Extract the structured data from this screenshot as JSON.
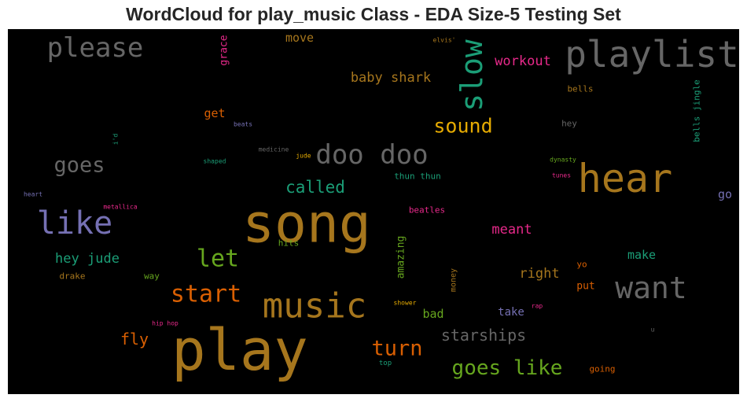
{
  "chart_data": {
    "type": "wordcloud",
    "title": "WordCloud for play_music Class - EDA Size-5 Testing Set",
    "background": "#000000",
    "palette": [
      "#1b9e77",
      "#d95f02",
      "#7570b3",
      "#e7298a",
      "#66a61e",
      "#e6ab02",
      "#a6761d",
      "#666666"
    ],
    "words": [
      {
        "text": "song",
        "color": "#a6761d"
      },
      {
        "text": "play",
        "color": "#a6761d"
      },
      {
        "text": "hear",
        "color": "#a6761d"
      },
      {
        "text": "playlist",
        "color": "#666666"
      },
      {
        "text": "music",
        "color": "#a6761d"
      },
      {
        "text": "like",
        "color": "#7570b3"
      },
      {
        "text": "want",
        "color": "#666666"
      },
      {
        "text": "doo doo",
        "color": "#666666"
      },
      {
        "text": "slow",
        "color": "#1b9e77"
      },
      {
        "text": "please",
        "color": "#666666"
      },
      {
        "text": "start",
        "color": "#d95f02"
      },
      {
        "text": "let",
        "color": "#66a61e"
      },
      {
        "text": "goes like",
        "color": "#66a61e"
      },
      {
        "text": "turn",
        "color": "#d95f02"
      },
      {
        "text": "goes",
        "color": "#666666"
      },
      {
        "text": "sound",
        "color": "#e6ab02"
      },
      {
        "text": "starships",
        "color": "#666666"
      },
      {
        "text": "called",
        "color": "#1b9e77"
      },
      {
        "text": "baby shark",
        "color": "#a6761d"
      },
      {
        "text": "hey jude",
        "color": "#1b9e77"
      },
      {
        "text": "workout",
        "color": "#e7298a"
      },
      {
        "text": "fly",
        "color": "#d95f02"
      },
      {
        "text": "meant",
        "color": "#e7298a"
      },
      {
        "text": "right",
        "color": "#a6761d"
      },
      {
        "text": "make",
        "color": "#1b9e77"
      },
      {
        "text": "move",
        "color": "#a6761d"
      },
      {
        "text": "get",
        "color": "#d95f02"
      },
      {
        "text": "go",
        "color": "#7570b3"
      },
      {
        "text": "bad",
        "color": "#66a61e"
      },
      {
        "text": "take",
        "color": "#7570b3"
      },
      {
        "text": "grace",
        "color": "#e7298a"
      },
      {
        "text": "amazing",
        "color": "#66a61e"
      },
      {
        "text": "put",
        "color": "#d95f02"
      },
      {
        "text": "beatles",
        "color": "#e7298a"
      },
      {
        "text": "thun thun",
        "color": "#1b9e77"
      },
      {
        "text": "hey",
        "color": "#666666"
      },
      {
        "text": "bells jingle",
        "color": "#1b9e77"
      },
      {
        "text": "bells",
        "color": "#a6761d"
      },
      {
        "text": "going",
        "color": "#d95f02"
      },
      {
        "text": "hits",
        "color": "#66a61e"
      },
      {
        "text": "drake",
        "color": "#a6761d"
      },
      {
        "text": "way",
        "color": "#66a61e"
      },
      {
        "text": "money",
        "color": "#a6761d"
      },
      {
        "text": "yo",
        "color": "#d95f02"
      },
      {
        "text": "top",
        "color": "#1b9e77"
      },
      {
        "text": "elvis'",
        "color": "#a6761d"
      },
      {
        "text": "beats",
        "color": "#7570b3"
      },
      {
        "text": "i'd",
        "color": "#1b9e77"
      },
      {
        "text": "medicine",
        "color": "#666666"
      },
      {
        "text": "jude",
        "color": "#e6ab02"
      },
      {
        "text": "shaped",
        "color": "#1b9e77"
      },
      {
        "text": "dynasty",
        "color": "#66a61e"
      },
      {
        "text": "tunes",
        "color": "#e7298a"
      },
      {
        "text": "heart",
        "color": "#7570b3"
      },
      {
        "text": "metallica",
        "color": "#e7298a"
      },
      {
        "text": "shower",
        "color": "#e6ab02"
      },
      {
        "text": "rap",
        "color": "#e7298a"
      },
      {
        "text": "hip hop",
        "color": "#e7298a"
      },
      {
        "text": "u",
        "color": "#666666"
      }
    ]
  }
}
